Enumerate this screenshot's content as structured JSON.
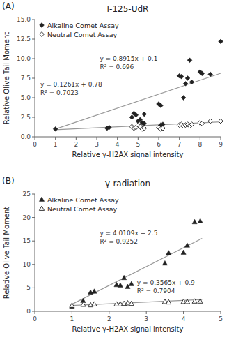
{
  "chart_data": [
    {
      "type": "scatter",
      "title": "I-125-UdR",
      "x_label": "Relative γ-H2AX signal intensity",
      "y_label": "Relative Olive Tail Moment",
      "xlim": [
        0,
        9
      ],
      "ylim": [
        0,
        15
      ],
      "xticks": [
        0,
        1,
        2,
        3,
        4,
        5,
        6,
        7,
        8,
        9
      ],
      "yticks": [
        {
          "value": 0,
          "label": "0.0"
        },
        2.5,
        {
          "value": 5,
          "label": "5.0"
        },
        7.5,
        {
          "value": 10,
          "label": "10.0"
        },
        12.5,
        {
          "value": 15,
          "label": "15.0"
        }
      ],
      "grid": false,
      "legend": "upper-left",
      "annotations": [
        [
          "(A)"
        ],
        [
          "y = 0.8915x + 0.1",
          "R² = 0.696"
        ],
        [
          "y = 0.1261x + 0.78",
          "R² = 0.7023"
        ]
      ],
      "series": [
        {
          "name": "Alkaline Comet Assay",
          "type": "scatter",
          "marker": "diamond",
          "color": "#222222",
          "x": [
            1.0,
            3.5,
            3.6,
            4.7,
            4.8,
            4.9,
            5.0,
            5.1,
            5.2,
            5.3,
            5.3,
            6.0,
            6.1,
            6.1,
            6.2,
            7.0,
            7.1,
            7.2,
            7.3,
            7.4,
            7.5,
            7.6,
            8.0,
            8.1,
            8.5,
            9.0
          ],
          "values": [
            1.0,
            1.1,
            1.2,
            2.5,
            3.0,
            2.8,
            2.0,
            2.2,
            1.8,
            1.7,
            2.9,
            4.2,
            4.0,
            1.5,
            1.6,
            7.8,
            7.7,
            5.0,
            6.8,
            7.5,
            9.8,
            7.0,
            8.3,
            8.1,
            8.0,
            12.2
          ]
        },
        {
          "name": "Neutral Comet Assay",
          "type": "scatter",
          "marker": "diamond-open",
          "color": "#222222",
          "x": [
            4.7,
            4.8,
            4.9,
            5.0,
            5.1,
            5.2,
            5.3,
            6.0,
            6.1,
            6.2,
            7.0,
            7.1,
            7.2,
            7.3,
            7.4,
            7.5,
            7.6,
            8.0,
            8.1,
            8.5,
            9.0
          ],
          "values": [
            1.3,
            1.1,
            1.2,
            1.5,
            1.3,
            1.0,
            1.1,
            1.2,
            1.0,
            1.1,
            1.5,
            1.6,
            1.4,
            1.5,
            1.6,
            1.4,
            1.6,
            1.8,
            1.7,
            2.0,
            2.0
          ]
        },
        {
          "type": "line",
          "color": "#999999",
          "x": [
            1.0,
            9.0
          ],
          "values": [
            0.9915,
            8.1235
          ]
        },
        {
          "type": "line",
          "color": "#999999",
          "x": [
            1.0,
            9.0
          ],
          "values": [
            0.9061,
            1.9149
          ]
        }
      ]
    },
    {
      "type": "scatter",
      "title": "γ-radiation",
      "x_label": "Relative γ-H2AX signal intensity",
      "y_label": "Relative Olive Tail Moment",
      "xlim": [
        0,
        5
      ],
      "ylim": [
        0,
        25
      ],
      "xticks": [
        0,
        1,
        2,
        3,
        4,
        5
      ],
      "yticks": [
        0,
        5,
        10,
        15,
        20,
        25
      ],
      "grid": false,
      "legend": "upper-left",
      "annotations": [
        [
          "(B)"
        ],
        [
          "y = 4.0109x − 2.5",
          "R² = 0.9252"
        ],
        [
          "y = 0.3565x + 0.9",
          "R² = 0.7904"
        ]
      ],
      "series": [
        {
          "name": "Alkaline Comet Assay",
          "type": "scatter",
          "marker": "triangle",
          "color": "#222222",
          "x": [
            1.0,
            1.3,
            1.5,
            1.6,
            2.2,
            2.3,
            2.4,
            2.5,
            2.6,
            3.5,
            3.6,
            4.0,
            4.1,
            4.3,
            4.45
          ],
          "values": [
            1.0,
            2.2,
            4.0,
            4.2,
            5.6,
            5.5,
            7.1,
            5.2,
            5.8,
            10.2,
            12.4,
            12.5,
            14.0,
            19.0,
            19.2
          ]
        },
        {
          "name": "Neutral Comet Assay",
          "type": "scatter",
          "marker": "triangle-open",
          "color": "#222222",
          "x": [
            1.0,
            1.3,
            1.5,
            1.6,
            2.2,
            2.3,
            2.4,
            2.5,
            2.6,
            3.5,
            3.6,
            4.0,
            4.1,
            4.3,
            4.45
          ],
          "values": [
            1.2,
            1.4,
            1.3,
            1.5,
            1.5,
            1.5,
            1.6,
            1.7,
            1.6,
            2.0,
            1.9,
            2.0,
            2.0,
            2.1,
            2.1
          ]
        },
        {
          "type": "line",
          "color": "#999999",
          "x": [
            1.0,
            4.5
          ],
          "values": [
            1.5109,
            15.54905
          ]
        },
        {
          "type": "line",
          "color": "#999999",
          "x": [
            1.0,
            4.5
          ],
          "values": [
            1.2565,
            2.50425
          ]
        }
      ]
    }
  ]
}
